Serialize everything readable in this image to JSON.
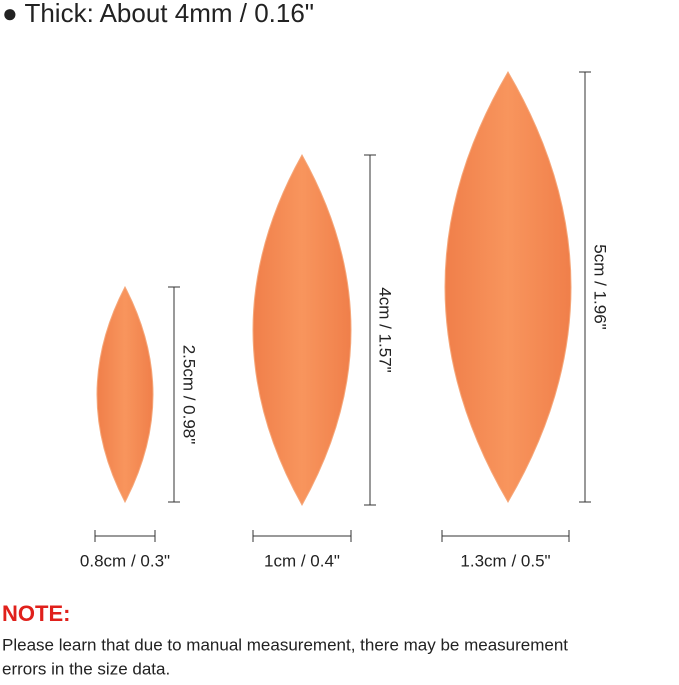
{
  "header": {
    "title": "● Thick: About 4mm / 0.16\""
  },
  "items": [
    {
      "height_label": "2.5cm / 0.98\"",
      "width_label": "0.8cm / 0.3\""
    },
    {
      "height_label": "4cm / 1.57\"",
      "width_label": "1cm / 0.4\""
    },
    {
      "height_label": "5cm / 1.96\"",
      "width_label": "1.3cm / 0.5\""
    }
  ],
  "note": {
    "title": "NOTE:",
    "lines": [
      "Please learn that due to manual measurement, there may be measurement",
      "errors in the size data."
    ]
  }
}
